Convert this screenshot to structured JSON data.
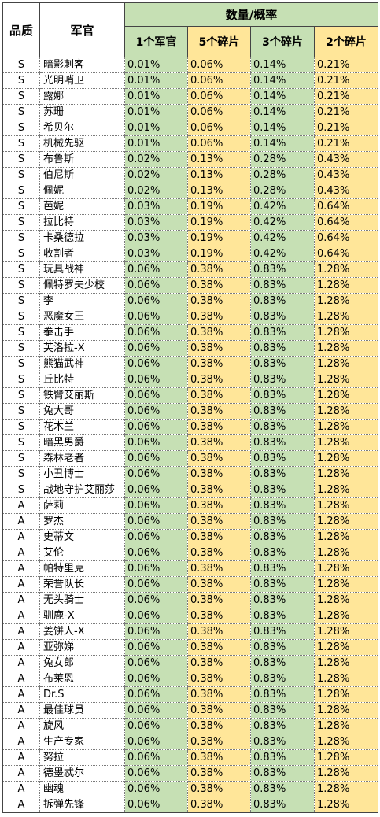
{
  "header": {
    "quality": "品质",
    "officer": "军官",
    "group": "数量/概率",
    "cols": [
      "1个军官",
      "5个碎片",
      "3个碎片",
      "2个碎片"
    ]
  },
  "rows": [
    [
      "S",
      "暗影刺客",
      "0.01%",
      "0.06%",
      "0.14%",
      "0.21%"
    ],
    [
      "S",
      "光明哨卫",
      "0.01%",
      "0.06%",
      "0.14%",
      "0.21%"
    ],
    [
      "S",
      "露娜",
      "0.01%",
      "0.06%",
      "0.14%",
      "0.21%"
    ],
    [
      "S",
      "苏珊",
      "0.01%",
      "0.06%",
      "0.14%",
      "0.21%"
    ],
    [
      "S",
      "希贝尔",
      "0.01%",
      "0.06%",
      "0.14%",
      "0.21%"
    ],
    [
      "S",
      "机械先驱",
      "0.01%",
      "0.06%",
      "0.14%",
      "0.21%"
    ],
    [
      "S",
      "布鲁斯",
      "0.02%",
      "0.13%",
      "0.28%",
      "0.43%"
    ],
    [
      "S",
      "伯尼斯",
      "0.02%",
      "0.13%",
      "0.28%",
      "0.43%"
    ],
    [
      "S",
      "佩妮",
      "0.02%",
      "0.13%",
      "0.28%",
      "0.43%"
    ],
    [
      "S",
      "芭妮",
      "0.03%",
      "0.19%",
      "0.42%",
      "0.64%"
    ],
    [
      "S",
      "拉比特",
      "0.03%",
      "0.19%",
      "0.42%",
      "0.64%"
    ],
    [
      "S",
      "卡桑德拉",
      "0.03%",
      "0.19%",
      "0.42%",
      "0.64%"
    ],
    [
      "S",
      "收割者",
      "0.03%",
      "0.19%",
      "0.42%",
      "0.64%"
    ],
    [
      "S",
      "玩具战神",
      "0.06%",
      "0.38%",
      "0.83%",
      "1.28%"
    ],
    [
      "S",
      "佩特罗夫少校",
      "0.06%",
      "0.38%",
      "0.83%",
      "1.28%"
    ],
    [
      "S",
      "李",
      "0.06%",
      "0.38%",
      "0.83%",
      "1.28%"
    ],
    [
      "S",
      "恶魔女王",
      "0.06%",
      "0.38%",
      "0.83%",
      "1.28%"
    ],
    [
      "S",
      "拳击手",
      "0.06%",
      "0.38%",
      "0.83%",
      "1.28%"
    ],
    [
      "S",
      "芙洛拉-X",
      "0.06%",
      "0.38%",
      "0.83%",
      "1.28%"
    ],
    [
      "S",
      "熊猫武神",
      "0.06%",
      "0.38%",
      "0.83%",
      "1.28%"
    ],
    [
      "S",
      "丘比特",
      "0.06%",
      "0.38%",
      "0.83%",
      "1.28%"
    ],
    [
      "S",
      "铁臂艾丽斯",
      "0.06%",
      "0.38%",
      "0.83%",
      "1.28%"
    ],
    [
      "S",
      "兔大哥",
      "0.06%",
      "0.38%",
      "0.83%",
      "1.28%"
    ],
    [
      "S",
      "花木兰",
      "0.06%",
      "0.38%",
      "0.83%",
      "1.28%"
    ],
    [
      "S",
      "暗黑男爵",
      "0.06%",
      "0.38%",
      "0.83%",
      "1.28%"
    ],
    [
      "S",
      "森林老者",
      "0.06%",
      "0.38%",
      "0.83%",
      "1.28%"
    ],
    [
      "S",
      "小丑博士",
      "0.06%",
      "0.38%",
      "0.83%",
      "1.28%"
    ],
    [
      "S",
      "战地守护艾丽莎",
      "0.06%",
      "0.38%",
      "0.83%",
      "1.28%"
    ],
    [
      "A",
      "萨莉",
      "0.06%",
      "0.38%",
      "0.83%",
      "1.28%"
    ],
    [
      "A",
      "罗杰",
      "0.06%",
      "0.38%",
      "0.83%",
      "1.28%"
    ],
    [
      "A",
      "史蒂文",
      "0.06%",
      "0.38%",
      "0.83%",
      "1.28%"
    ],
    [
      "A",
      "艾伦",
      "0.06%",
      "0.38%",
      "0.83%",
      "1.28%"
    ],
    [
      "A",
      "帕特里克",
      "0.06%",
      "0.38%",
      "0.83%",
      "1.28%"
    ],
    [
      "A",
      "荣誉队长",
      "0.06%",
      "0.38%",
      "0.83%",
      "1.28%"
    ],
    [
      "A",
      "无头骑士",
      "0.06%",
      "0.38%",
      "0.83%",
      "1.28%"
    ],
    [
      "A",
      "驯鹿-X",
      "0.06%",
      "0.38%",
      "0.83%",
      "1.28%"
    ],
    [
      "A",
      "姜饼人-X",
      "0.06%",
      "0.38%",
      "0.83%",
      "1.28%"
    ],
    [
      "A",
      "亚弥娣",
      "0.06%",
      "0.38%",
      "0.83%",
      "1.28%"
    ],
    [
      "A",
      "兔女郎",
      "0.06%",
      "0.38%",
      "0.83%",
      "1.28%"
    ],
    [
      "A",
      "布莱恩",
      "0.06%",
      "0.38%",
      "0.83%",
      "1.28%"
    ],
    [
      "A",
      "Dr.S",
      "0.06%",
      "0.38%",
      "0.83%",
      "1.28%"
    ],
    [
      "A",
      "最佳球员",
      "0.06%",
      "0.38%",
      "0.83%",
      "1.28%"
    ],
    [
      "A",
      "旋风",
      "0.06%",
      "0.38%",
      "0.83%",
      "1.28%"
    ],
    [
      "A",
      "生产专家",
      "0.06%",
      "0.38%",
      "0.83%",
      "1.28%"
    ],
    [
      "A",
      "努拉",
      "0.06%",
      "0.38%",
      "0.83%",
      "1.28%"
    ],
    [
      "A",
      "德墨忒尔",
      "0.06%",
      "0.38%",
      "0.83%",
      "1.28%"
    ],
    [
      "A",
      "幽魂",
      "0.06%",
      "0.38%",
      "0.83%",
      "1.28%"
    ],
    [
      "A",
      "拆弹先锋",
      "0.06%",
      "0.38%",
      "0.83%",
      "1.28%"
    ]
  ]
}
